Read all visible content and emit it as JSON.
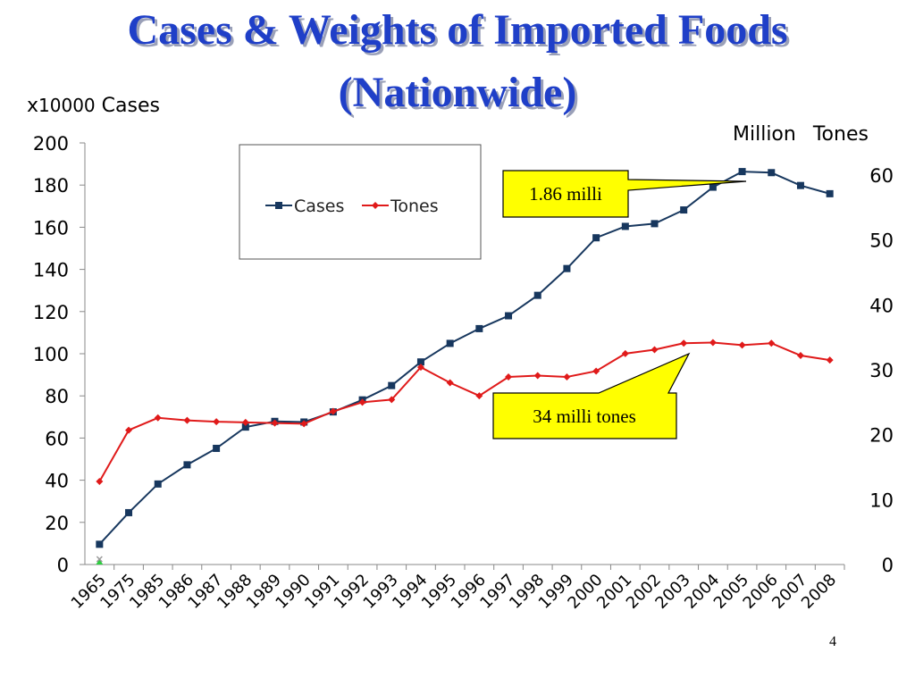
{
  "slide": {
    "title_line1": "Cases & Weights of Imported Foods",
    "title_line2": "(Nationwide)",
    "page_number": "4"
  },
  "colors": {
    "title": "#1f3fc8",
    "cases": "#17375e",
    "tones": "#e01a1a",
    "callout": "#ffff00"
  },
  "chart_data": {
    "type": "line",
    "categories": [
      "1965",
      "1975",
      "1985",
      "1986",
      "1987",
      "1988",
      "1989",
      "1990",
      "1991",
      "1992",
      "1993",
      "1994",
      "1995",
      "1996",
      "1997",
      "1998",
      "1999",
      "2000",
      "2001",
      "2002",
      "2003",
      "2004",
      "2005",
      "2006",
      "2007",
      "2008"
    ],
    "left_axis": {
      "label_prefix": "x",
      "label_number": "10000",
      "label_unit": "Cases",
      "ylim": [
        0,
        200
      ],
      "ticks": [
        0,
        20,
        40,
        60,
        80,
        100,
        120,
        140,
        160,
        180,
        200
      ]
    },
    "right_axis": {
      "label_line": "Million Tones",
      "label_million": "Million",
      "label_tones": "Tones",
      "ylim": [
        0,
        65
      ],
      "ticks": [
        0,
        10,
        20,
        30,
        40,
        50,
        60
      ]
    },
    "series": [
      {
        "name": "Cases",
        "axis": "left",
        "marker": "square",
        "values": [
          9.6,
          24.6,
          38.2,
          47.3,
          55.1,
          65.2,
          67.9,
          67.6,
          72.4,
          78.1,
          84.9,
          96.1,
          104.9,
          111.9,
          118.0,
          127.7,
          140.4,
          155.0,
          160.4,
          161.7,
          168.2,
          179.0,
          186.4,
          185.9,
          179.8,
          175.9
        ]
      },
      {
        "name": "Tones",
        "axis": "right",
        "marker": "diamond",
        "values": [
          12.8,
          20.7,
          22.6,
          22.2,
          22.0,
          21.9,
          21.8,
          21.7,
          23.6,
          25.0,
          25.4,
          30.4,
          28.0,
          26.0,
          28.9,
          29.1,
          28.9,
          29.8,
          32.5,
          33.1,
          34.1,
          34.2,
          33.8,
          34.1,
          32.2,
          31.5
        ]
      }
    ],
    "annotations": [
      {
        "text": "1.86 milli",
        "series": "Cases",
        "point": "2005"
      },
      {
        "text": "34 milli tones",
        "series": "Tones",
        "point": "2004"
      }
    ],
    "legend": {
      "placement": "top-left",
      "entries": [
        "Cases",
        "Tones"
      ]
    },
    "grid": false
  }
}
